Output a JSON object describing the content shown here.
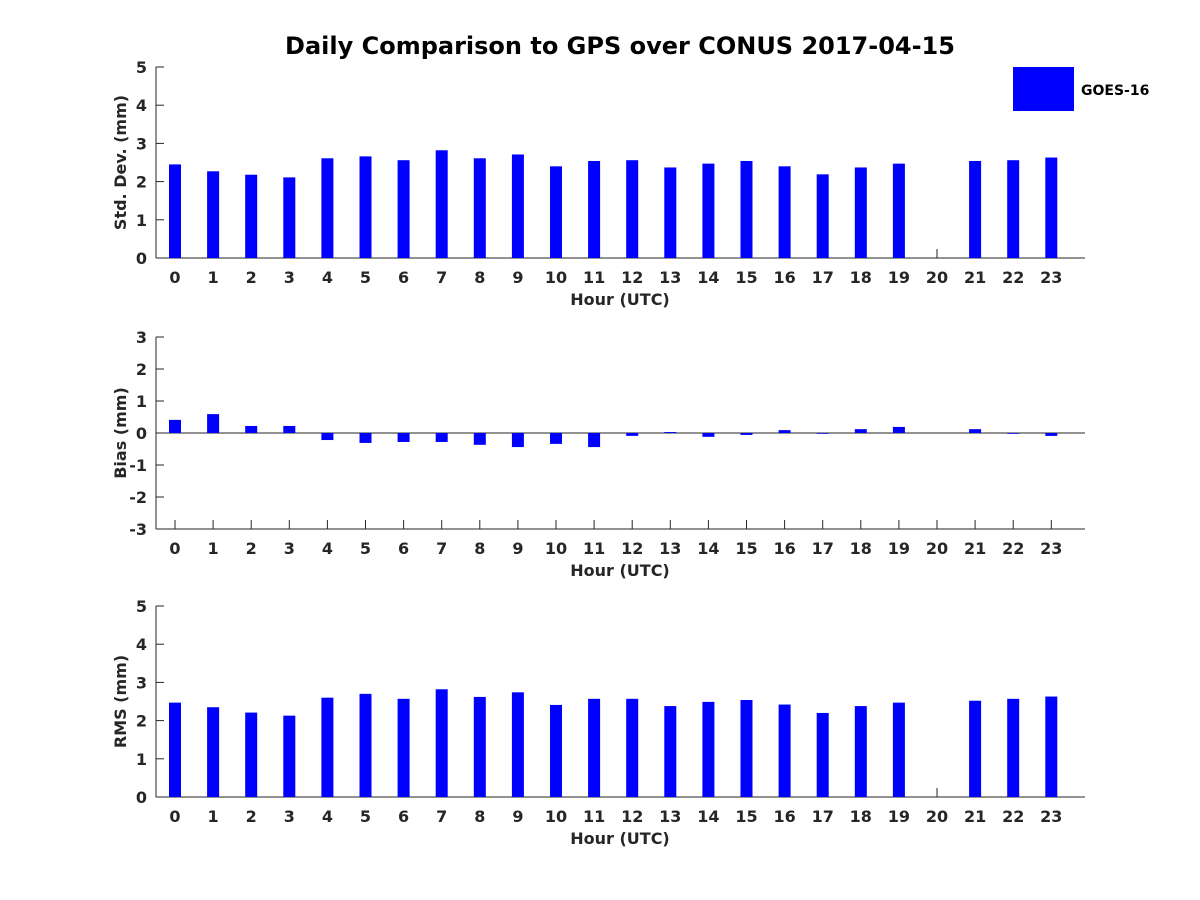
{
  "chart_data": {
    "type": "bar",
    "title": "Daily Comparison to GPS over CONUS 2017-04-15",
    "legend": {
      "label": "GOES-16",
      "color": "#0000ff",
      "placement": "top-right"
    },
    "bar_color": "#0000ff",
    "categories": [
      "0",
      "1",
      "2",
      "3",
      "4",
      "5",
      "6",
      "7",
      "8",
      "9",
      "10",
      "11",
      "12",
      "13",
      "14",
      "15",
      "16",
      "17",
      "18",
      "19",
      "20",
      "21",
      "22",
      "23"
    ],
    "panels": [
      {
        "ylabel": "Std. Dev. (mm)",
        "xlabel": "Hour (UTC)",
        "ylim": [
          0,
          5
        ],
        "yticks": [
          "0",
          "1",
          "2",
          "3",
          "4",
          "5"
        ],
        "values": [
          2.45,
          2.27,
          2.18,
          2.11,
          2.61,
          2.66,
          2.56,
          2.82,
          2.61,
          2.71,
          2.4,
          2.54,
          2.56,
          2.37,
          2.47,
          2.54,
          2.4,
          2.19,
          2.37,
          2.47,
          null,
          2.54,
          2.56,
          2.63
        ]
      },
      {
        "ylabel": "Bias (mm)",
        "xlabel": "Hour (UTC)",
        "ylim": [
          -3,
          3
        ],
        "yticks": [
          "-3",
          "-2",
          "-1",
          "0",
          "1",
          "2",
          "3"
        ],
        "values": [
          0.41,
          0.59,
          0.22,
          0.22,
          -0.22,
          -0.31,
          -0.28,
          -0.28,
          -0.37,
          -0.44,
          -0.34,
          -0.44,
          -0.09,
          0.03,
          -0.12,
          -0.06,
          0.09,
          0.0,
          0.12,
          0.19,
          null,
          0.12,
          0.0,
          -0.09
        ]
      },
      {
        "ylabel": "RMS (mm)",
        "xlabel": "Hour (UTC)",
        "ylim": [
          0,
          5
        ],
        "yticks": [
          "0",
          "1",
          "2",
          "3",
          "4",
          "5"
        ],
        "values": [
          2.47,
          2.35,
          2.21,
          2.13,
          2.6,
          2.7,
          2.57,
          2.82,
          2.62,
          2.74,
          2.41,
          2.57,
          2.57,
          2.38,
          2.49,
          2.54,
          2.42,
          2.2,
          2.38,
          2.47,
          null,
          2.52,
          2.57,
          2.63
        ]
      }
    ]
  }
}
